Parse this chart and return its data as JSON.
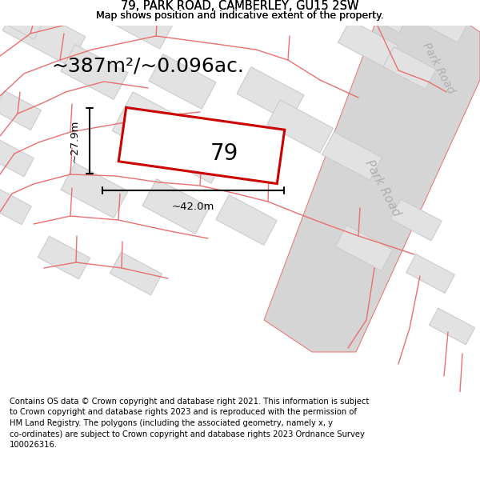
{
  "title": "79, PARK ROAD, CAMBERLEY, GU15 2SW",
  "subtitle": "Map shows position and indicative extent of the property.",
  "area_text": "~387m²/~0.096ac.",
  "label_79": "79",
  "dim_height": "~27.9m",
  "dim_width": "~42.0m",
  "road_label": "Park Road",
  "map_bg": "#f0f0f0",
  "plot_fill": "#ffffff",
  "plot_stroke": "#cc0000",
  "building_fill": "#e2e2e2",
  "building_edge": "#cccccc",
  "road_fill": "#d8d8d8",
  "pink_line_color": "#e87070",
  "footer_text": "Contains OS data © Crown copyright and database right 2021. This information is subject to Crown copyright and database rights 2023 and is reproduced with the permission of HM Land Registry. The polygons (including the associated geometry, namely x, y co-ordinates) are subject to Crown copyright and database rights 2023 Ordnance Survey 100026316.",
  "fig_width": 6.0,
  "fig_height": 6.25
}
